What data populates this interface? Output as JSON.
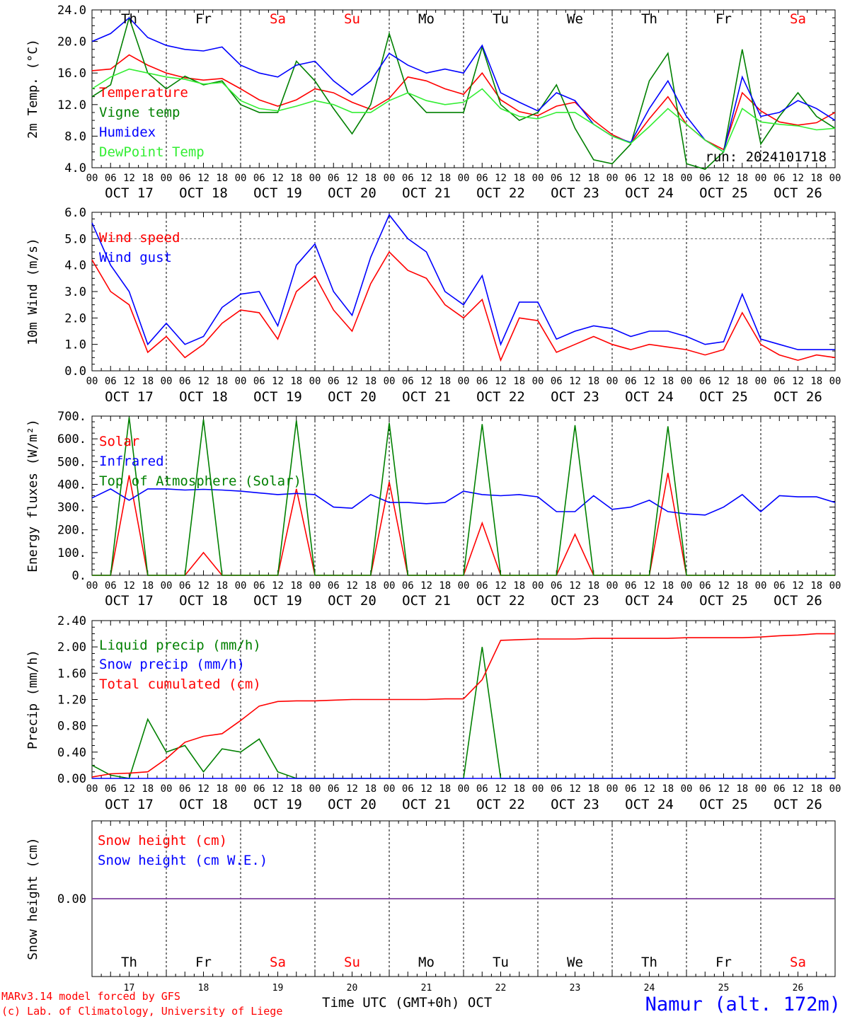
{
  "colors": {
    "red": "#ff0000",
    "green": "#008000",
    "blue": "#0000ff",
    "light_green": "#33ee33",
    "purple": "#7f3f9f",
    "label": "#000000"
  },
  "days": [
    "Th",
    "Fr",
    "Sa",
    "Su",
    "Mo",
    "Tu",
    "We",
    "Th",
    "Fr",
    "Sa"
  ],
  "weekend_flags": [
    false,
    false,
    true,
    true,
    false,
    false,
    false,
    false,
    false,
    true
  ],
  "dates": [
    "OCT 17",
    "OCT 18",
    "OCT 19",
    "OCT 20",
    "OCT 21",
    "OCT 22",
    "OCT 23",
    "OCT 24",
    "OCT 25",
    "OCT 26"
  ],
  "hour_ticks": [
    "00",
    "06",
    "12",
    "18"
  ],
  "hour_end": "00",
  "bottom_day_numbers": [
    "17",
    "18",
    "19",
    "20",
    "21",
    "22",
    "23",
    "24",
    "25",
    "26"
  ],
  "run_label": "run: 2024101718",
  "xlabel": "Time UTC (GMT+0h) OCT",
  "credit_line1": "MARv3.14 model forced by GFS",
  "credit_line2": "(c) Lab. of Climatology, University of Liege",
  "location": "Namur (alt. 172m)",
  "chart_data": [
    {
      "type": "line",
      "ylabel": "2m Temp. (°C)",
      "ylim": [
        4.0,
        24.0
      ],
      "yticks": [
        "4.0",
        "8.0",
        "12.0",
        "16.0",
        "20.0",
        "24.0"
      ],
      "x_hours": [
        0,
        6,
        12,
        18,
        24,
        30,
        36,
        42,
        48,
        54,
        60,
        66,
        72,
        78,
        84,
        90,
        96,
        102,
        108,
        114,
        120,
        126,
        132,
        138,
        144,
        150,
        156,
        162,
        168,
        174,
        180,
        186,
        192,
        198,
        204,
        210,
        216,
        222,
        228,
        234,
        240
      ],
      "series": [
        {
          "name": "Temperature",
          "color": "red",
          "values": [
            16.3,
            16.5,
            18.3,
            17.0,
            16.0,
            15.4,
            15.1,
            15.3,
            14.0,
            12.6,
            11.8,
            12.6,
            14.0,
            13.5,
            12.3,
            11.4,
            12.8,
            15.5,
            15.0,
            14.0,
            13.3,
            16.0,
            12.6,
            11.1,
            10.6,
            11.8,
            12.3,
            10.0,
            8.2,
            7.1,
            10.2,
            13.0,
            9.5,
            7.5,
            6.3,
            13.5,
            11.2,
            9.8,
            9.4,
            9.7,
            11.0
          ]
        },
        {
          "name": "Vigne temp",
          "color": "green",
          "values": [
            13.0,
            14.5,
            23.0,
            16.0,
            14.0,
            15.6,
            14.5,
            15.0,
            12.0,
            11.0,
            11.0,
            17.5,
            15.0,
            11.5,
            8.3,
            12.0,
            21.0,
            13.5,
            11.0,
            11.0,
            11.0,
            19.3,
            12.0,
            10.0,
            11.0,
            14.5,
            9.0,
            5.0,
            4.5,
            7.0,
            15.0,
            18.5,
            4.5,
            3.8,
            6.0,
            19.0,
            7.0,
            10.5,
            13.5,
            10.5,
            9.0
          ]
        },
        {
          "name": "Humidex",
          "color": "blue",
          "values": [
            20.0,
            21.0,
            23.0,
            20.5,
            19.5,
            19.0,
            18.8,
            19.3,
            17.0,
            16.0,
            15.5,
            17.0,
            17.5,
            15.0,
            13.2,
            15.0,
            18.5,
            17.0,
            16.0,
            16.5,
            16.0,
            19.5,
            13.5,
            12.3,
            11.2,
            13.5,
            12.5,
            9.5,
            8.0,
            7.2,
            11.5,
            15.0,
            10.5,
            7.5,
            6.0,
            15.5,
            10.5,
            11.0,
            12.5,
            11.5,
            10.0
          ]
        },
        {
          "name": "DewPoint Temp",
          "color": "light_green",
          "values": [
            14.0,
            15.5,
            16.5,
            16.0,
            15.5,
            15.2,
            14.6,
            14.8,
            12.5,
            11.5,
            11.2,
            11.8,
            12.5,
            12.0,
            11.0,
            11.0,
            12.5,
            13.5,
            12.5,
            12.0,
            12.3,
            14.0,
            11.5,
            10.5,
            10.2,
            11.0,
            11.0,
            9.5,
            8.0,
            7.1,
            9.2,
            11.5,
            9.5,
            7.5,
            6.0,
            11.5,
            9.8,
            9.5,
            9.3,
            8.8,
            9.0
          ]
        }
      ]
    },
    {
      "type": "line",
      "ylabel": "10m Wind (m/s)",
      "ylim": [
        0.0,
        6.0
      ],
      "yticks": [
        "0.0",
        "1.0",
        "2.0",
        "3.0",
        "4.0",
        "5.0",
        "6.0"
      ],
      "ref_line": 5.0,
      "x_hours": [
        0,
        6,
        12,
        18,
        24,
        30,
        36,
        42,
        48,
        54,
        60,
        66,
        72,
        78,
        84,
        90,
        96,
        102,
        108,
        114,
        120,
        126,
        132,
        138,
        144,
        150,
        156,
        162,
        168,
        174,
        180,
        186,
        192,
        198,
        204,
        210,
        216,
        222,
        228,
        234,
        240
      ],
      "series": [
        {
          "name": "Wind speed",
          "color": "red",
          "values": [
            4.2,
            3.0,
            2.5,
            0.7,
            1.3,
            0.5,
            1.0,
            1.8,
            2.3,
            2.2,
            1.2,
            3.0,
            3.6,
            2.3,
            1.5,
            3.3,
            4.5,
            3.8,
            3.5,
            2.5,
            2.0,
            2.7,
            0.4,
            2.0,
            1.9,
            0.7,
            1.0,
            1.3,
            1.0,
            0.8,
            1.0,
            0.9,
            0.8,
            0.6,
            0.8,
            2.2,
            1.0,
            0.6,
            0.4,
            0.6,
            0.5
          ]
        },
        {
          "name": "Wind gust",
          "color": "blue",
          "values": [
            5.6,
            4.0,
            3.0,
            1.0,
            1.8,
            1.0,
            1.3,
            2.4,
            2.9,
            3.0,
            1.7,
            4.0,
            4.8,
            3.0,
            2.1,
            4.3,
            5.9,
            5.0,
            4.5,
            3.0,
            2.5,
            3.6,
            1.0,
            2.6,
            2.6,
            1.2,
            1.5,
            1.7,
            1.6,
            1.3,
            1.5,
            1.5,
            1.3,
            1.0,
            1.1,
            2.9,
            1.2,
            1.0,
            0.8,
            0.8,
            0.8
          ]
        }
      ]
    },
    {
      "type": "line",
      "ylabel": "Energy fluxes (W/m²)",
      "ylim": [
        0,
        700
      ],
      "yticks": [
        "0.",
        "100.",
        "200.",
        "300.",
        "400.",
        "500.",
        "600.",
        "700."
      ],
      "x_hours": [
        0,
        6,
        12,
        18,
        24,
        30,
        36,
        42,
        48,
        54,
        60,
        66,
        72,
        78,
        84,
        90,
        96,
        102,
        108,
        114,
        120,
        126,
        132,
        138,
        144,
        150,
        156,
        162,
        168,
        174,
        180,
        186,
        192,
        198,
        204,
        210,
        216,
        222,
        228,
        234,
        240
      ],
      "series": [
        {
          "name": "Solar",
          "color": "red",
          "values": [
            0,
            0,
            440,
            0,
            0,
            0,
            100,
            0,
            0,
            0,
            0,
            380,
            0,
            0,
            0,
            0,
            410,
            0,
            0,
            0,
            0,
            230,
            0,
            0,
            0,
            0,
            180,
            0,
            0,
            0,
            0,
            450,
            0,
            0,
            0,
            0,
            0,
            0,
            0,
            0,
            0
          ]
        },
        {
          "name": "Infrared",
          "color": "blue",
          "values": [
            340,
            380,
            330,
            380,
            380,
            375,
            378,
            375,
            370,
            362,
            355,
            360,
            355,
            300,
            295,
            355,
            320,
            320,
            315,
            320,
            370,
            355,
            350,
            355,
            345,
            280,
            280,
            350,
            290,
            300,
            330,
            280,
            270,
            265,
            300,
            355,
            280,
            350,
            345,
            345,
            320
          ]
        },
        {
          "name": "Top of Atmosphere (Solar)",
          "color": "green",
          "values": [
            0,
            0,
            695,
            0,
            0,
            0,
            685,
            0,
            0,
            0,
            0,
            680,
            0,
            0,
            0,
            0,
            670,
            0,
            0,
            0,
            0,
            665,
            0,
            0,
            0,
            0,
            660,
            0,
            0,
            0,
            0,
            655,
            0,
            0,
            0,
            0,
            0,
            0,
            0,
            0,
            0
          ]
        }
      ]
    },
    {
      "type": "line",
      "ylabel": "Precip (mm/h)",
      "ylim": [
        0.0,
        2.4
      ],
      "yticks": [
        "0.00",
        "0.40",
        "0.80",
        "1.20",
        "1.60",
        "2.00",
        "2.40"
      ],
      "x_hours": [
        0,
        6,
        12,
        18,
        24,
        30,
        36,
        42,
        48,
        54,
        60,
        66,
        72,
        78,
        84,
        90,
        96,
        102,
        108,
        114,
        120,
        126,
        132,
        138,
        144,
        150,
        156,
        162,
        168,
        174,
        180,
        186,
        192,
        198,
        204,
        210,
        216,
        222,
        228,
        234,
        240
      ],
      "series": [
        {
          "name": "Liquid precip (mm/h)",
          "color": "green",
          "values": [
            0.2,
            0.05,
            0.0,
            0.9,
            0.4,
            0.5,
            0.1,
            0.45,
            0.4,
            0.6,
            0.1,
            0.0,
            0.0,
            0.0,
            0.0,
            0.0,
            0.0,
            0.0,
            0.0,
            0.0,
            0.0,
            2.0,
            0.0,
            0.0,
            0.0,
            0.0,
            0.0,
            0.0,
            0.0,
            0.0,
            0.0,
            0.0,
            0.0,
            0.0,
            0.0,
            0.0,
            0.0,
            0.0,
            0.0,
            0.0,
            0.0
          ]
        },
        {
          "name": "Snow precip (mm/h)",
          "color": "blue",
          "values": [
            0,
            0,
            0,
            0,
            0,
            0,
            0,
            0,
            0,
            0,
            0,
            0,
            0,
            0,
            0,
            0,
            0,
            0,
            0,
            0,
            0,
            0,
            0,
            0,
            0,
            0,
            0,
            0,
            0,
            0,
            0,
            0,
            0,
            0,
            0,
            0,
            0,
            0,
            0,
            0,
            0
          ]
        },
        {
          "name": "Total cumulated (cm)",
          "color": "red",
          "values": [
            0.02,
            0.07,
            0.08,
            0.1,
            0.3,
            0.55,
            0.64,
            0.68,
            0.88,
            1.1,
            1.17,
            1.18,
            1.18,
            1.19,
            1.2,
            1.2,
            1.2,
            1.2,
            1.2,
            1.21,
            1.21,
            1.5,
            2.1,
            2.11,
            2.12,
            2.12,
            2.12,
            2.13,
            2.13,
            2.13,
            2.13,
            2.13,
            2.14,
            2.14,
            2.14,
            2.14,
            2.15,
            2.17,
            2.18,
            2.2,
            2.2
          ]
        }
      ]
    },
    {
      "type": "line",
      "ylabel": "Snow height (cm)",
      "ylim": [
        -1,
        1
      ],
      "yticks": [
        "0.00"
      ],
      "x_hours": [
        0,
        240
      ],
      "series": [
        {
          "name": "Snow height (cm)",
          "color": "red",
          "values": [
            0,
            0
          ]
        },
        {
          "name": "Snow height (cm W.E.)",
          "color": "blue",
          "values": [
            0,
            0
          ]
        }
      ]
    }
  ]
}
